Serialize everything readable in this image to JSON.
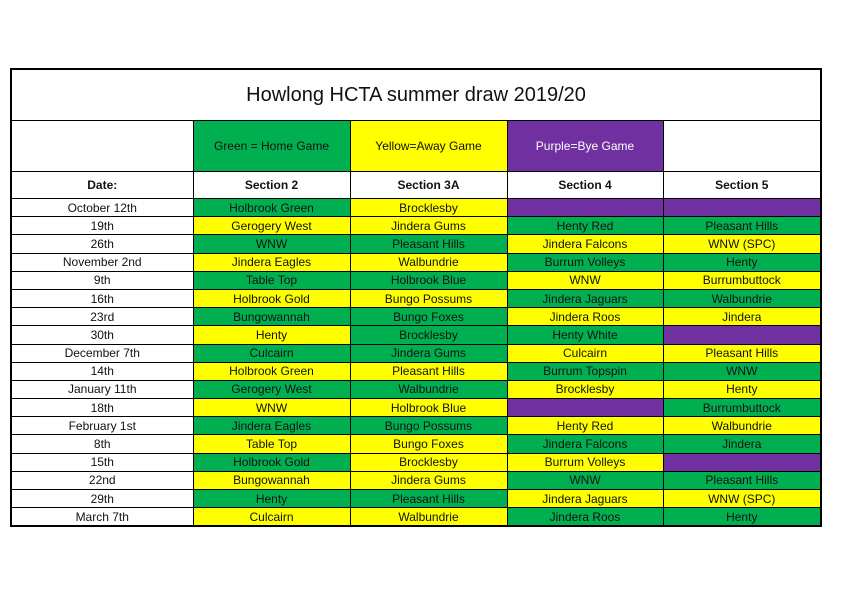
{
  "title": "Howlong HCTA summer draw 2019/20",
  "colors": {
    "g": "#00b050",
    "y": "#ffff00",
    "p": "#7030a0"
  },
  "legend": {
    "home": "Green = Home Game",
    "away": "Yellow=Away Game",
    "bye": "Purple=Bye Game"
  },
  "headers": [
    "Date:",
    "Section 2",
    "Section 3A",
    "Section 4",
    "Section 5"
  ],
  "rows": [
    {
      "date": "October 12th",
      "cells": [
        [
          "Holbrook Green",
          "g"
        ],
        [
          "Brocklesby",
          "y"
        ],
        [
          "",
          "p"
        ],
        [
          "",
          "p"
        ]
      ]
    },
    {
      "date": "19th",
      "cells": [
        [
          "Gerogery West",
          "y"
        ],
        [
          "Jindera Gums",
          "y"
        ],
        [
          "Henty Red",
          "g"
        ],
        [
          "Pleasant Hills",
          "g"
        ]
      ]
    },
    {
      "date": "26th",
      "cells": [
        [
          "WNW",
          "g"
        ],
        [
          "Pleasant Hills",
          "g"
        ],
        [
          "Jindera Falcons",
          "y"
        ],
        [
          "WNW (SPC)",
          "y"
        ]
      ]
    },
    {
      "date": "November 2nd",
      "cells": [
        [
          "Jindera Eagles",
          "y"
        ],
        [
          "Walbundrie",
          "y"
        ],
        [
          "Burrum Volleys",
          "g"
        ],
        [
          "Henty",
          "g"
        ]
      ]
    },
    {
      "date": "9th",
      "cells": [
        [
          "Table Top",
          "g"
        ],
        [
          "Holbrook Blue",
          "g"
        ],
        [
          "WNW",
          "y"
        ],
        [
          "Burrumbuttock",
          "y"
        ]
      ]
    },
    {
      "date": "16th",
      "cells": [
        [
          "Holbrook Gold",
          "y"
        ],
        [
          "Bungo Possums",
          "y"
        ],
        [
          "Jindera Jaguars",
          "g"
        ],
        [
          "Walbundrie",
          "g"
        ]
      ]
    },
    {
      "date": "23rd",
      "cells": [
        [
          "Bungowannah",
          "g"
        ],
        [
          "Bungo Foxes",
          "g"
        ],
        [
          "Jindera Roos",
          "y"
        ],
        [
          "Jindera",
          "y"
        ]
      ]
    },
    {
      "date": "30th",
      "cells": [
        [
          "Henty",
          "y"
        ],
        [
          "Brocklesby",
          "g"
        ],
        [
          "Henty White",
          "g"
        ],
        [
          "",
          "p"
        ]
      ]
    },
    {
      "date": "December 7th",
      "cells": [
        [
          "Culcairn",
          "g"
        ],
        [
          "Jindera Gums",
          "g"
        ],
        [
          "Culcairn",
          "y"
        ],
        [
          "Pleasant Hills",
          "y"
        ]
      ]
    },
    {
      "date": "14th",
      "cells": [
        [
          "Holbrook Green",
          "y"
        ],
        [
          "Pleasant Hills",
          "y"
        ],
        [
          "Burrum Topspin",
          "g"
        ],
        [
          "WNW",
          "g"
        ]
      ]
    },
    {
      "date": "January 11th",
      "cells": [
        [
          "Gerogery West",
          "g"
        ],
        [
          "Walbundrie",
          "g"
        ],
        [
          "Brocklesby",
          "y"
        ],
        [
          "Henty",
          "y"
        ]
      ]
    },
    {
      "date": "18th",
      "cells": [
        [
          "WNW",
          "y"
        ],
        [
          "Holbrook Blue",
          "y"
        ],
        [
          "",
          "p"
        ],
        [
          "Burrumbuttock",
          "g"
        ]
      ]
    },
    {
      "date": "February 1st",
      "cells": [
        [
          "Jindera Eagles",
          "g"
        ],
        [
          "Bungo Possums",
          "g"
        ],
        [
          "Henty Red",
          "y"
        ],
        [
          "Walbundrie",
          "y"
        ]
      ]
    },
    {
      "date": "8th",
      "cells": [
        [
          "Table Top",
          "y"
        ],
        [
          "Bungo Foxes",
          "y"
        ],
        [
          "Jindera Falcons",
          "g"
        ],
        [
          "Jindera",
          "g"
        ]
      ]
    },
    {
      "date": "15th",
      "cells": [
        [
          "Holbrook Gold",
          "g"
        ],
        [
          "Brocklesby",
          "y"
        ],
        [
          "Burrum Volleys",
          "y"
        ],
        [
          "",
          "p"
        ]
      ]
    },
    {
      "date": "22nd",
      "cells": [
        [
          "Bungowannah",
          "y"
        ],
        [
          "Jindera Gums",
          "y"
        ],
        [
          "WNW",
          "g"
        ],
        [
          "Pleasant Hills",
          "g"
        ]
      ]
    },
    {
      "date": "29th",
      "cells": [
        [
          "Henty",
          "g"
        ],
        [
          "Pleasant Hills",
          "g"
        ],
        [
          "Jindera Jaguars",
          "y"
        ],
        [
          "WNW (SPC)",
          "y"
        ]
      ]
    },
    {
      "date": "March 7th",
      "cells": [
        [
          "Culcairn",
          "y"
        ],
        [
          "Walbundrie",
          "y"
        ],
        [
          "Jindera Roos",
          "g"
        ],
        [
          "Henty",
          "g"
        ]
      ]
    }
  ]
}
